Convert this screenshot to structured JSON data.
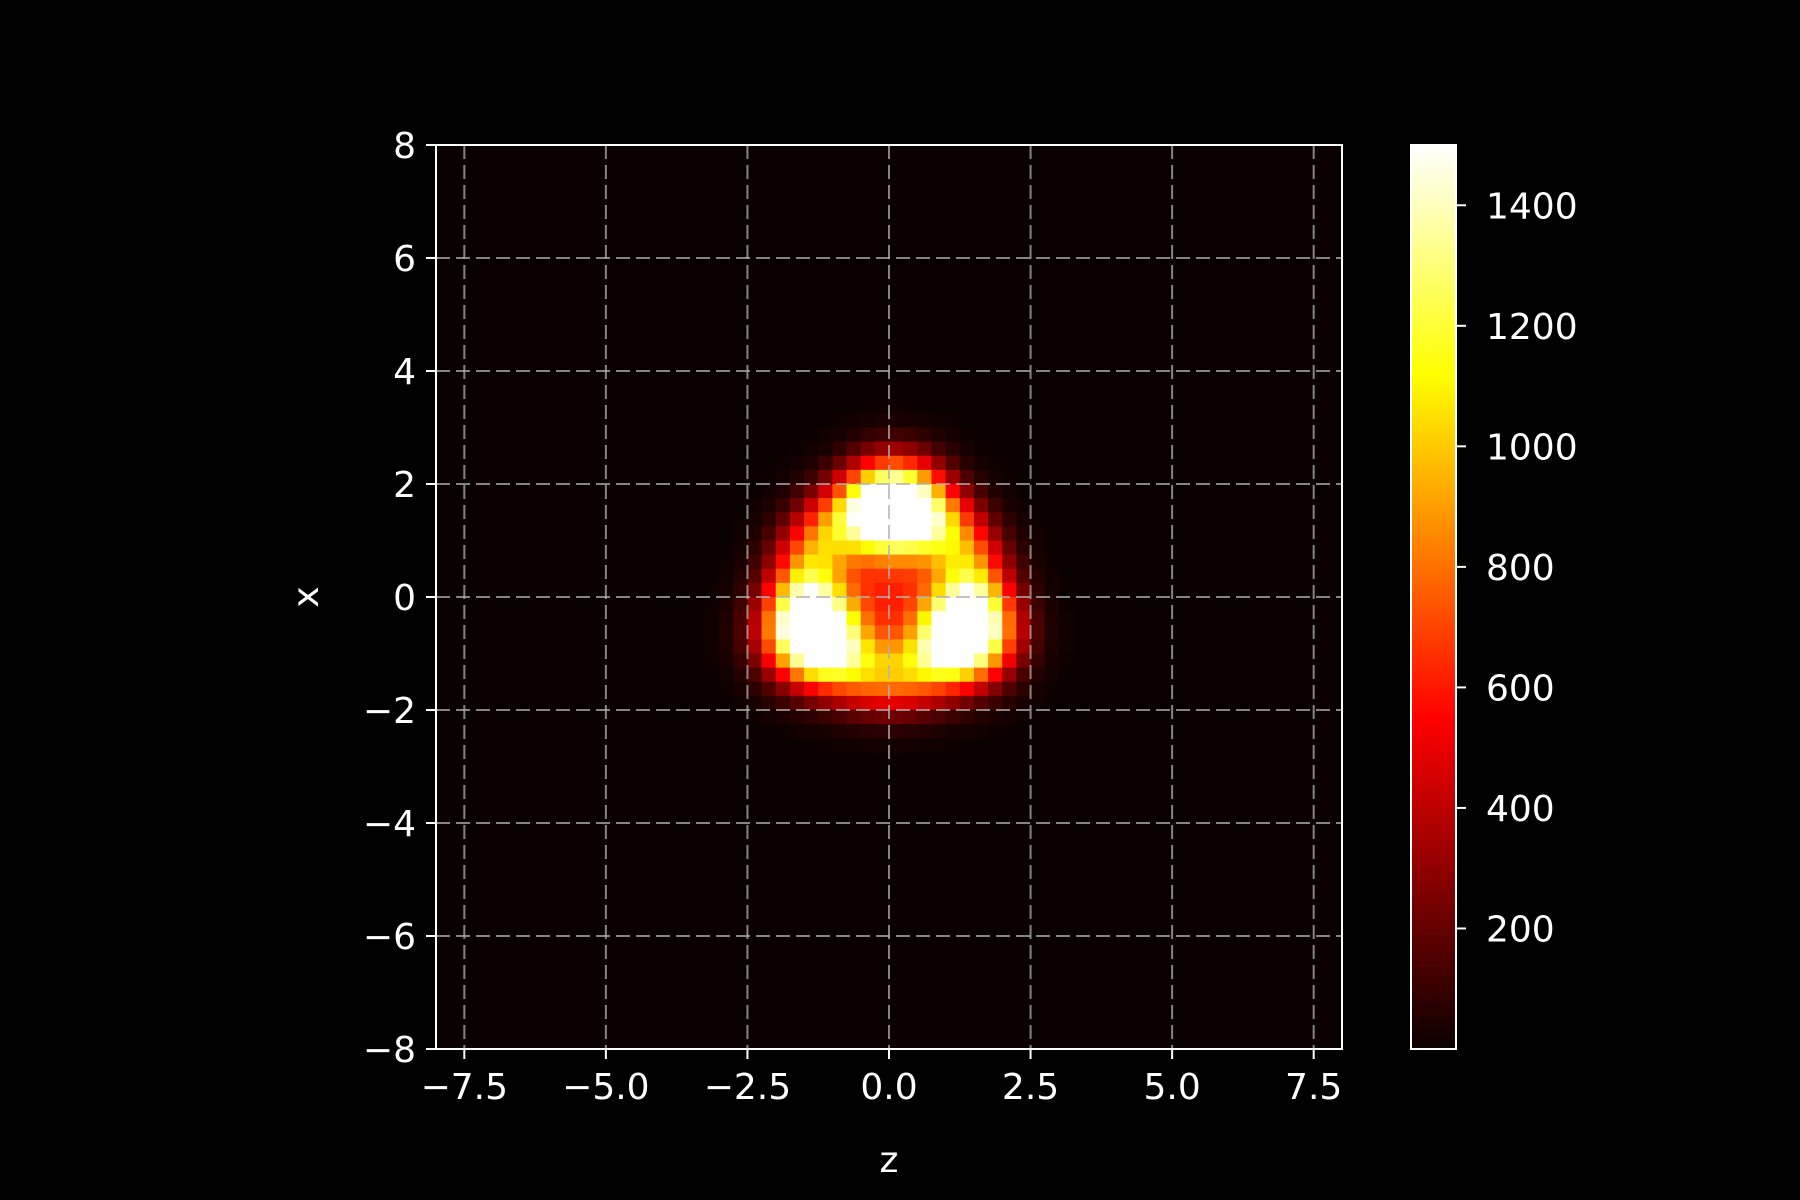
{
  "chart_data": {
    "type": "heatmap",
    "title": "",
    "xlabel": "z",
    "ylabel": "x",
    "xlim": [
      -8,
      8
    ],
    "ylim": [
      -8,
      8
    ],
    "x_ticks": [
      -7.5,
      -5.0,
      -2.5,
      0.0,
      2.5,
      5.0,
      7.5
    ],
    "x_tick_labels": [
      "−7.5",
      "−5.0",
      "−2.5",
      "0.0",
      "2.5",
      "5.0",
      "7.5"
    ],
    "y_ticks": [
      8,
      6,
      4,
      2,
      0,
      -2,
      -4,
      -6,
      -8
    ],
    "y_tick_labels": [
      "8",
      "6",
      "4",
      "2",
      "0",
      "−2",
      "−4",
      "−6",
      "−8"
    ],
    "grid": true,
    "grid_style": "dashed",
    "colormap": "hot",
    "background": "#000000",
    "grid_resolution": 64,
    "value_range": [
      0,
      1500
    ],
    "blobs": [
      {
        "z": 0.1,
        "x": 1.6,
        "peak": 1480
      },
      {
        "z": -1.4,
        "x": -0.65,
        "peak": 1500
      },
      {
        "z": 1.4,
        "x": -0.65,
        "peak": 1440
      }
    ],
    "ring": {
      "z": 0.0,
      "x": 0.1,
      "radius": 1.45,
      "peak": 820
    },
    "colorbar": {
      "min": 0,
      "max": 1500,
      "ticks": [
        200,
        400,
        600,
        800,
        1000,
        1200,
        1400
      ],
      "tick_labels": [
        "200",
        "400",
        "600",
        "800",
        "1000",
        "1200",
        "1400"
      ]
    }
  }
}
